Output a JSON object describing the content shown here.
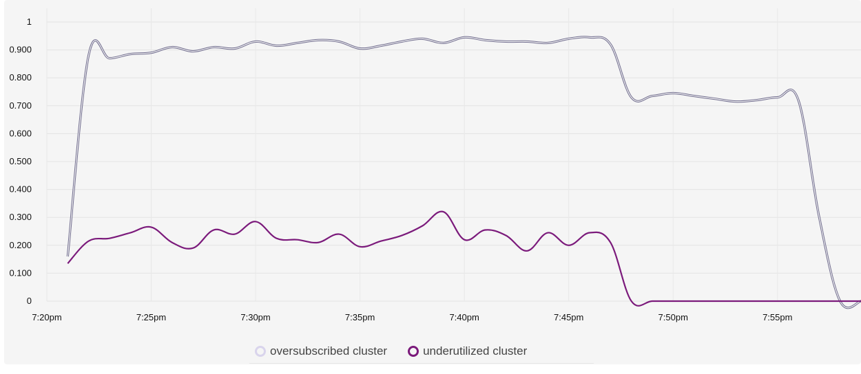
{
  "chart_data": {
    "type": "line",
    "xlabel": "",
    "ylabel": "",
    "x": [
      "7:21pm",
      "7:22pm",
      "7:23pm",
      "7:24pm",
      "7:25pm",
      "7:26pm",
      "7:27pm",
      "7:28pm",
      "7:29pm",
      "7:30pm",
      "7:31pm",
      "7:32pm",
      "7:33pm",
      "7:34pm",
      "7:35pm",
      "7:36pm",
      "7:37pm",
      "7:38pm",
      "7:39pm",
      "7:40pm",
      "7:41pm",
      "7:42pm",
      "7:43pm",
      "7:44pm",
      "7:45pm",
      "7:46pm",
      "7:47pm",
      "7:48pm",
      "7:49pm",
      "7:50pm",
      "7:51pm",
      "7:52pm",
      "7:53pm",
      "7:54pm",
      "7:55pm",
      "7:56pm",
      "7:57pm",
      "7:58pm",
      "7:59pm"
    ],
    "x_ticks": [
      "7:20pm",
      "7:25pm",
      "7:30pm",
      "7:35pm",
      "7:40pm",
      "7:45pm",
      "7:50pm",
      "7:55pm"
    ],
    "x_tick_minutes": [
      20,
      25,
      30,
      35,
      40,
      45,
      50,
      55
    ],
    "x_minutes": [
      21,
      22,
      23,
      24,
      25,
      26,
      27,
      28,
      29,
      30,
      31,
      32,
      33,
      34,
      35,
      36,
      37,
      38,
      39,
      40,
      41,
      42,
      43,
      44,
      45,
      46,
      47,
      48,
      49,
      50,
      51,
      52,
      53,
      54,
      55,
      56,
      57,
      58,
      59
    ],
    "x_range": [
      20,
      59
    ],
    "ylim": [
      0,
      1
    ],
    "y_ticks": [
      "0",
      "0.100",
      "0.200",
      "0.300",
      "0.400",
      "0.500",
      "0.600",
      "0.700",
      "0.800",
      "0.900",
      "1"
    ],
    "y_tick_values": [
      0,
      0.1,
      0.2,
      0.3,
      0.4,
      0.5,
      0.6,
      0.7,
      0.8,
      0.9,
      1
    ],
    "grid": true,
    "legend_position": "bottom-center",
    "series": [
      {
        "name": "oversubscribed cluster",
        "color": "#d9d4ec",
        "stroke": "#6e6a8c",
        "style": "double",
        "values": [
          0.16,
          0.88,
          0.87,
          0.885,
          0.89,
          0.91,
          0.895,
          0.91,
          0.905,
          0.93,
          0.915,
          0.925,
          0.935,
          0.93,
          0.905,
          0.915,
          0.93,
          0.94,
          0.925,
          0.945,
          0.935,
          0.93,
          0.93,
          0.925,
          0.94,
          0.945,
          0.92,
          0.73,
          0.735,
          0.745,
          0.735,
          0.725,
          0.715,
          0.72,
          0.73,
          0.72,
          0.3,
          0.0,
          0.0
        ]
      },
      {
        "name": "underutilized cluster",
        "color": "#7b1a7b",
        "stroke": "#7b1a7b",
        "style": "solid",
        "values": [
          0.135,
          0.215,
          0.225,
          0.245,
          0.265,
          0.21,
          0.19,
          0.255,
          0.24,
          0.285,
          0.225,
          0.22,
          0.21,
          0.24,
          0.195,
          0.215,
          0.235,
          0.27,
          0.32,
          0.22,
          0.255,
          0.235,
          0.18,
          0.245,
          0.2,
          0.245,
          0.21,
          0.0,
          0.0,
          0.0,
          0.0,
          0.0,
          0.0,
          0.0,
          0.0,
          0.0,
          0.0,
          0.0,
          0.0
        ]
      }
    ]
  }
}
